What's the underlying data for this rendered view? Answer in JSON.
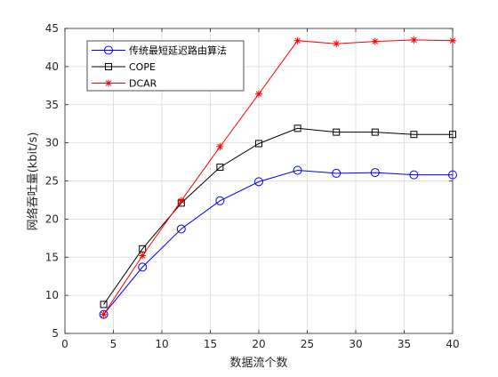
{
  "chart_data": {
    "type": "line",
    "title": "",
    "xlabel": "数据流个数",
    "ylabel": "网络吞吐量(kbit/s)",
    "xlim": [
      0,
      40
    ],
    "ylim": [
      5,
      45
    ],
    "x_ticks": [
      0,
      5,
      10,
      15,
      20,
      25,
      30,
      35,
      40
    ],
    "y_ticks": [
      5,
      10,
      15,
      20,
      25,
      30,
      35,
      40,
      45
    ],
    "grid": true,
    "legend_position": "top-left",
    "x": [
      4,
      8,
      12,
      16,
      20,
      24,
      28,
      32,
      36,
      40
    ],
    "series": [
      {
        "name": "传统最短延迟路由算法",
        "color": "#0000ff",
        "marker": "circle",
        "values": [
          7.5,
          13.7,
          18.7,
          22.4,
          24.9,
          26.4,
          26.0,
          26.1,
          25.8,
          25.8
        ]
      },
      {
        "name": "COPE",
        "color": "#000000",
        "marker": "square",
        "values": [
          8.8,
          16.1,
          22.1,
          26.8,
          29.9,
          31.9,
          31.4,
          31.4,
          31.1,
          31.1
        ]
      },
      {
        "name": "DCAR",
        "color": "#ff0000",
        "marker": "star",
        "values": [
          7.5,
          15.2,
          22.4,
          29.5,
          36.4,
          43.4,
          43.0,
          43.3,
          43.5,
          43.4
        ]
      }
    ]
  }
}
